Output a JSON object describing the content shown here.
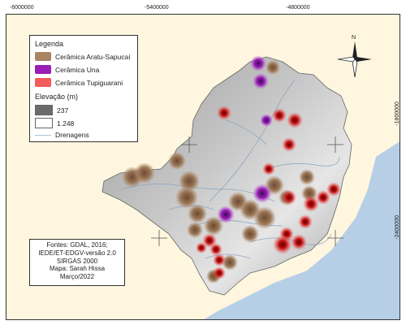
{
  "coordinates": {
    "top": [
      "-6000000",
      "-5400000",
      "-4800000"
    ],
    "right": [
      "-1800000",
      "-2400000"
    ]
  },
  "legend": {
    "title": "Legenda",
    "items": [
      {
        "label": "Cerâmica Aratu-Sapucaí",
        "color": "#a98463"
      },
      {
        "label": "Cerâmica Una",
        "color": "#9a1fb6"
      },
      {
        "label": "Cerâmica Tupiguarani",
        "color": "#f45b5b"
      }
    ],
    "elevation_title": "Elevação (m)",
    "elevation_low": "237",
    "elevation_high": "1.248",
    "drainage_label": "Drenagens",
    "elevation_low_color": "#6b6b6b",
    "elevation_high_color": "#ffffff",
    "drainage_color": "#a9c4db"
  },
  "north_label": "N",
  "credits": [
    "Fontes: GDAL, 2016;",
    "IEDE/ET-EDGV-versão 2.0",
    "SIRGAS 2000",
    "Mapa: Sarah Hissa",
    "Março/2022"
  ],
  "colors": {
    "sea": "#b7cfe6",
    "land_outside": "#fff6df",
    "region_fill": "#bdbdbd",
    "river": "#8ea7bf"
  }
}
